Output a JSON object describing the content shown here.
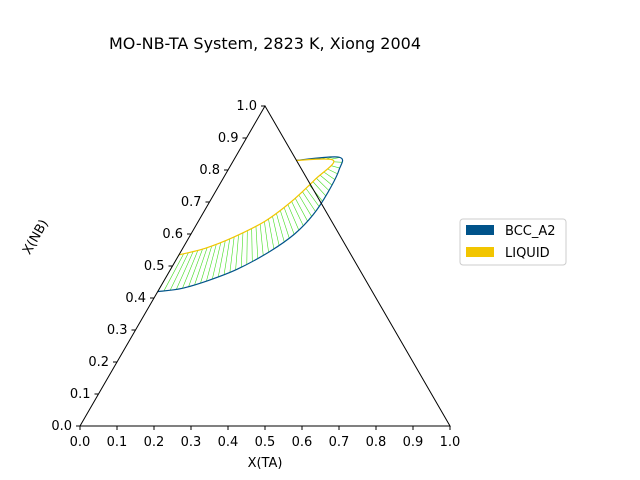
{
  "chart_data": {
    "type": "ternary",
    "title": "MO-NB-TA System, 2823 K, Xiong 2004",
    "xlabel": "X(TA)",
    "ylabel": "X(NB)",
    "xlim": [
      0,
      1
    ],
    "ylim": [
      0,
      1
    ],
    "x_ticks": [
      "0.0",
      "0.1",
      "0.2",
      "0.3",
      "0.4",
      "0.5",
      "0.6",
      "0.7",
      "0.8",
      "0.9",
      "1.0"
    ],
    "y_ticks": [
      "0.0",
      "0.1",
      "0.2",
      "0.3",
      "0.4",
      "0.5",
      "0.6",
      "0.7",
      "0.8",
      "0.9",
      "1.0"
    ],
    "legend_position": "right",
    "legend": [
      {
        "name": "BCC_A2",
        "color": "#00538a"
      },
      {
        "name": "LIQUID",
        "color": "#f2c500"
      }
    ],
    "tie_line_color": "#44dd22",
    "series": [
      {
        "name": "BCC_A2",
        "color": "#00538a",
        "points": [
          {
            "x_ta": 0.0,
            "x_nb": 0.42
          },
          {
            "x_ta": 0.06,
            "x_nb": 0.43
          },
          {
            "x_ta": 0.12,
            "x_nb": 0.455
          },
          {
            "x_ta": 0.18,
            "x_nb": 0.49
          },
          {
            "x_ta": 0.24,
            "x_nb": 0.545
          },
          {
            "x_ta": 0.28,
            "x_nb": 0.6
          },
          {
            "x_ta": 0.3,
            "x_nb": 0.66
          },
          {
            "x_ta": 0.305,
            "x_nb": 0.73
          },
          {
            "x_ta": 0.3,
            "x_nb": 0.8
          },
          {
            "x_ta": 0.28,
            "x_nb": 0.84
          },
          {
            "x_ta": 0.17,
            "x_nb": 0.83
          }
        ]
      },
      {
        "name": "LIQUID",
        "color": "#f2c500",
        "points": [
          {
            "x_ta": 0.0,
            "x_nb": 0.535
          },
          {
            "x_ta": 0.06,
            "x_nb": 0.555
          },
          {
            "x_ta": 0.12,
            "x_nb": 0.59
          },
          {
            "x_ta": 0.18,
            "x_nb": 0.64
          },
          {
            "x_ta": 0.22,
            "x_nb": 0.7
          },
          {
            "x_ta": 0.25,
            "x_nb": 0.77
          },
          {
            "x_ta": 0.27,
            "x_nb": 0.83
          },
          {
            "x_ta": 0.17,
            "x_nb": 0.83
          }
        ]
      }
    ]
  }
}
